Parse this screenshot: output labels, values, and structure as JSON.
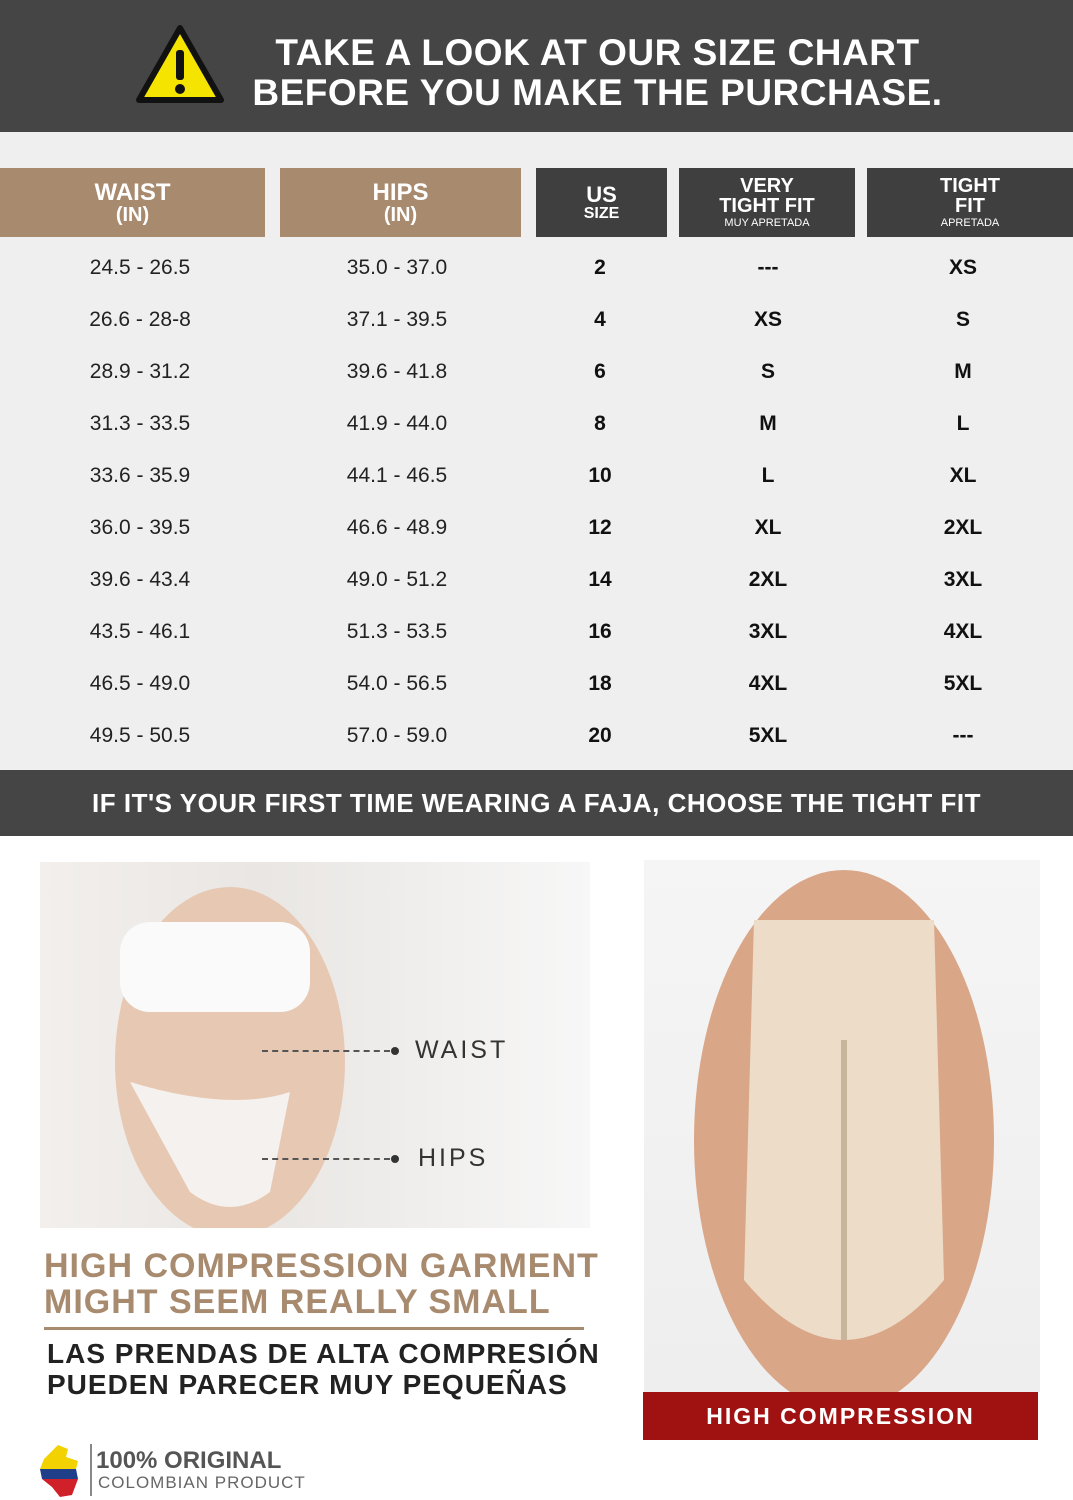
{
  "header": {
    "title_line1": "TAKE A LOOK AT OUR SIZE CHART",
    "title_line2": "BEFORE YOU MAKE THE PURCHASE.",
    "icon": "warning-icon"
  },
  "table": {
    "columns": [
      {
        "line1": "WAIST",
        "line2": "(IN)"
      },
      {
        "line1": "HIPS",
        "line2": "(IN)"
      },
      {
        "line1": "US",
        "line2": "SIZE"
      },
      {
        "line1": "VERY",
        "line2": "TIGHT FIT",
        "sub": "MUY APRETADA"
      },
      {
        "line1": "TIGHT",
        "line2": "FIT",
        "sub": "APRETADA"
      }
    ],
    "rows": [
      [
        "24.5 - 26.5",
        "35.0 - 37.0",
        "2",
        "---",
        "XS"
      ],
      [
        "26.6 - 28-8",
        "37.1 - 39.5",
        "4",
        "XS",
        "S"
      ],
      [
        "28.9 - 31.2",
        "39.6 - 41.8",
        "6",
        "S",
        "M"
      ],
      [
        "31.3 - 33.5",
        "41.9 - 44.0",
        "8",
        "M",
        "L"
      ],
      [
        "33.6 - 35.9",
        "44.1 - 46.5",
        "10",
        "L",
        "XL"
      ],
      [
        "36.0 - 39.5",
        "46.6 - 48.9",
        "12",
        "XL",
        "2XL"
      ],
      [
        "39.6 - 43.4",
        "49.0 - 51.2",
        "14",
        "2XL",
        "3XL"
      ],
      [
        "43.5 - 46.1",
        "51.3 - 53.5",
        "16",
        "3XL",
        "4XL"
      ],
      [
        "46.5 - 49.0",
        "54.0 - 56.5",
        "18",
        "4XL",
        "5XL"
      ],
      [
        "49.5 - 50.5",
        "57.0 - 59.0",
        "20",
        "5XL",
        "---"
      ]
    ]
  },
  "banner": "IF IT'S YOUR FIRST TIME WEARING A FAJA, CHOOSE THE TIGHT FIT",
  "measure": {
    "waist": "WAIST",
    "hips": "HIPS"
  },
  "warning_en": {
    "line1": "HIGH COMPRESSION GARMENT",
    "line2": "MIGHT SEEM REALLY SMALL"
  },
  "warning_es": {
    "line1": "LAS PRENDAS DE ALTA COMPRESIÓN",
    "line2": "PUEDEN PARECER MUY PEQUEÑAS"
  },
  "product_label": "HIGH COMPRESSION",
  "logo": {
    "line1": "100% ORIGINAL",
    "line2": "COLOMBIAN PRODUCT"
  },
  "colors": {
    "dark": "#454545",
    "tan": "#a88a6e",
    "red": "#a01212",
    "warning_yellow": "#f5e400"
  }
}
